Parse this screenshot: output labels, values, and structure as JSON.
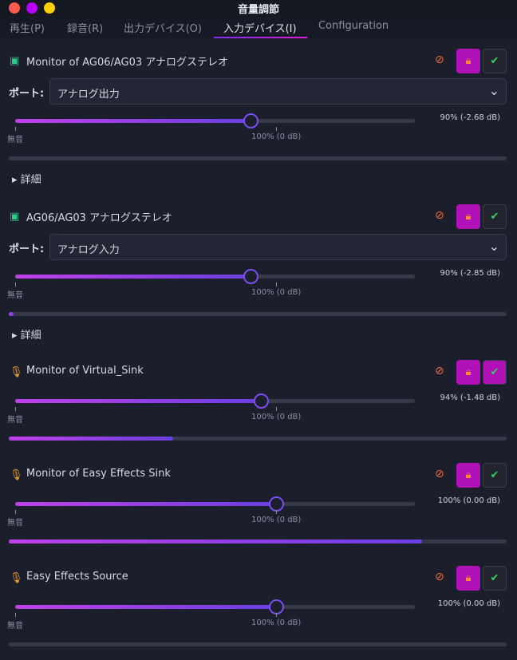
{
  "window": {
    "title": "音量調節",
    "controls": [
      "#ff5a4e",
      "#b800ff",
      "#ffd000"
    ]
  },
  "tabs": [
    {
      "label": "再生(P)"
    },
    {
      "label": "録音(R)"
    },
    {
      "label": "出力デバイス(O)"
    },
    {
      "label": "入力デバイス(I)",
      "active": true
    },
    {
      "label": "Configuration"
    }
  ],
  "port_label": "ポート:",
  "mute_label": "無音",
  "hundred_label": "100% (0 dB)",
  "details_label": "詳細",
  "devices": [
    {
      "name": "Monitor of AG06/AG03 アナログステレオ",
      "icon": "sound-card-icon",
      "port": "アナログ出力",
      "volume": 90,
      "volume_text": "90% (-2.68 dB)",
      "level": 0,
      "locked": true,
      "default": false
    },
    {
      "name": "AG06/AG03 アナログステレオ",
      "icon": "sound-card-icon",
      "port": "アナログ入力",
      "volume": 90,
      "volume_text": "90% (-2.85 dB)",
      "level": 1,
      "locked": true,
      "default": false
    },
    {
      "name": "Monitor of Virtual_Sink",
      "icon": "microphone-icon",
      "volume": 94,
      "volume_text": "94% (-1.48 dB)",
      "level": 33,
      "locked": true,
      "default": true
    },
    {
      "name": "Monitor of Easy Effects Sink",
      "icon": "microphone-icon",
      "volume": 100,
      "volume_text": "100% (0.00 dB)",
      "level": 83,
      "locked": true,
      "default": false
    },
    {
      "name": "Easy Effects Source",
      "icon": "microphone-icon",
      "volume": 100,
      "volume_text": "100% (0.00 dB)",
      "level": 0,
      "locked": true,
      "default": false
    }
  ]
}
